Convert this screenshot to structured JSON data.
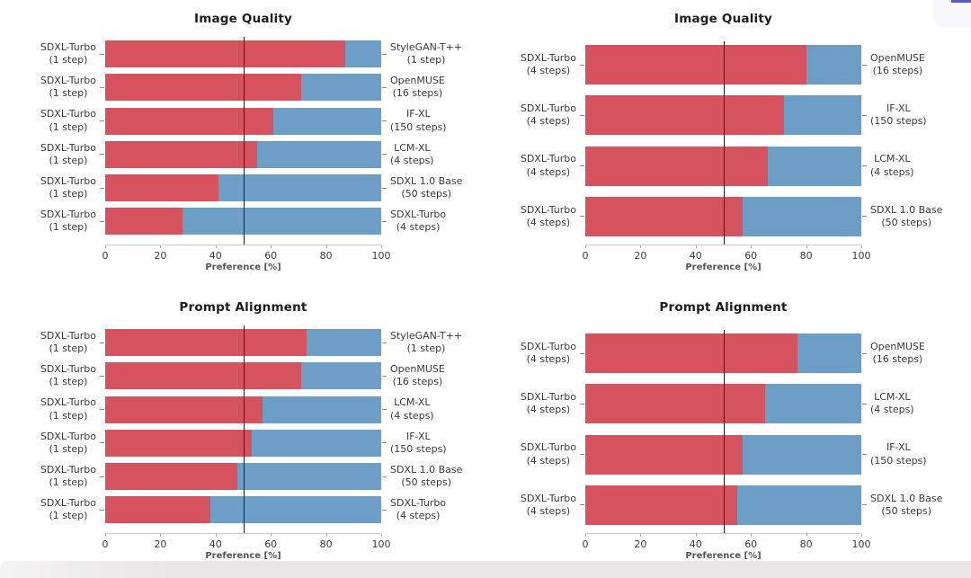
{
  "page": {
    "background": "#ffffff",
    "bottom_bar_color_left": "#f4f3f3",
    "bottom_bar_color": "#e8e6e7",
    "corner_fragment_color": "#f7f7fc",
    "corner_accent_color": "#585cc6"
  },
  "colors": {
    "left_model_bar": "#d5535f",
    "right_model_bar": "#6d9ec6",
    "midline": "#1e1e1e"
  },
  "chart_data": [
    {
      "type": "bar",
      "variant": "horizontal-paired-stacked",
      "position": "top-left",
      "title": "Image Quality",
      "xlabel": "Preference [%]",
      "xlim": [
        0,
        100
      ],
      "xticks": [
        0,
        20,
        40,
        60,
        80,
        100
      ],
      "midline": 50,
      "grid": false,
      "legend": "none",
      "rows": [
        {
          "left": "SDXL-Turbo\n(1 step)",
          "right": "StyleGAN-T++\n(1 step)",
          "left_pct": 87,
          "right_pct": 13
        },
        {
          "left": "SDXL-Turbo\n(1 step)",
          "right": "OpenMUSE\n(16 steps)",
          "left_pct": 71,
          "right_pct": 29
        },
        {
          "left": "SDXL-Turbo\n(1 step)",
          "right": "IF-XL\n(150 steps)",
          "left_pct": 61,
          "right_pct": 39
        },
        {
          "left": "SDXL-Turbo\n(1 step)",
          "right": "LCM-XL\n(4 steps)",
          "left_pct": 55,
          "right_pct": 45
        },
        {
          "left": "SDXL-Turbo\n(1 step)",
          "right": "SDXL 1.0 Base\n(50 steps)",
          "left_pct": 41,
          "right_pct": 59
        },
        {
          "left": "SDXL-Turbo\n(1 step)",
          "right": "SDXL-Turbo\n(4 steps)",
          "left_pct": 28,
          "right_pct": 72
        }
      ]
    },
    {
      "type": "bar",
      "variant": "horizontal-paired-stacked",
      "position": "top-right",
      "title": "Image Quality",
      "xlabel": "Preference [%]",
      "xlim": [
        0,
        100
      ],
      "xticks": [
        0,
        20,
        40,
        60,
        80,
        100
      ],
      "midline": 50,
      "grid": false,
      "legend": "none",
      "rows": [
        {
          "left": "SDXL-Turbo\n(4 steps)",
          "right": "OpenMUSE\n(16 steps)",
          "left_pct": 80,
          "right_pct": 20
        },
        {
          "left": "SDXL-Turbo\n(4 steps)",
          "right": "IF-XL\n(150 steps)",
          "left_pct": 72,
          "right_pct": 28
        },
        {
          "left": "SDXL-Turbo\n(4 steps)",
          "right": "LCM-XL\n(4 steps)",
          "left_pct": 66,
          "right_pct": 34
        },
        {
          "left": "SDXL-Turbo\n(4 steps)",
          "right": "SDXL 1.0 Base\n(50 steps)",
          "left_pct": 57,
          "right_pct": 43
        }
      ]
    },
    {
      "type": "bar",
      "variant": "horizontal-paired-stacked",
      "position": "bottom-left",
      "title": "Prompt Alignment",
      "xlabel": "Preference [%]",
      "xlim": [
        0,
        100
      ],
      "xticks": [
        0,
        20,
        40,
        60,
        80,
        100
      ],
      "midline": 50,
      "grid": false,
      "legend": "none",
      "rows": [
        {
          "left": "SDXL-Turbo\n(1 step)",
          "right": "StyleGAN-T++\n(1 step)",
          "left_pct": 73,
          "right_pct": 27
        },
        {
          "left": "SDXL-Turbo\n(1 step)",
          "right": "OpenMUSE\n(16 steps)",
          "left_pct": 71,
          "right_pct": 29
        },
        {
          "left": "SDXL-Turbo\n(1 step)",
          "right": "LCM-XL\n(4 steps)",
          "left_pct": 57,
          "right_pct": 43
        },
        {
          "left": "SDXL-Turbo\n(1 step)",
          "right": "IF-XL\n(150 steps)",
          "left_pct": 53,
          "right_pct": 47
        },
        {
          "left": "SDXL-Turbo\n(1 step)",
          "right": "SDXL 1.0 Base\n(50 steps)",
          "left_pct": 48,
          "right_pct": 52
        },
        {
          "left": "SDXL-Turbo\n(1 step)",
          "right": "SDXL-Turbo\n(4 steps)",
          "left_pct": 38,
          "right_pct": 62
        }
      ]
    },
    {
      "type": "bar",
      "variant": "horizontal-paired-stacked",
      "position": "bottom-right",
      "title": "Prompt Alignment",
      "xlabel": "Preference [%]",
      "xlim": [
        0,
        100
      ],
      "xticks": [
        0,
        20,
        40,
        60,
        80,
        100
      ],
      "midline": 50,
      "grid": false,
      "legend": "none",
      "rows": [
        {
          "left": "SDXL-Turbo\n(4 steps)",
          "right": "OpenMUSE\n(16 steps)",
          "left_pct": 77,
          "right_pct": 23
        },
        {
          "left": "SDXL-Turbo\n(4 steps)",
          "right": "LCM-XL\n(4 steps)",
          "left_pct": 65,
          "right_pct": 35
        },
        {
          "left": "SDXL-Turbo\n(4 steps)",
          "right": "IF-XL\n(150 steps)",
          "left_pct": 57,
          "right_pct": 43
        },
        {
          "left": "SDXL-Turbo\n(4 steps)",
          "right": "SDXL 1.0 Base\n(50 steps)",
          "left_pct": 55,
          "right_pct": 45
        }
      ]
    }
  ]
}
